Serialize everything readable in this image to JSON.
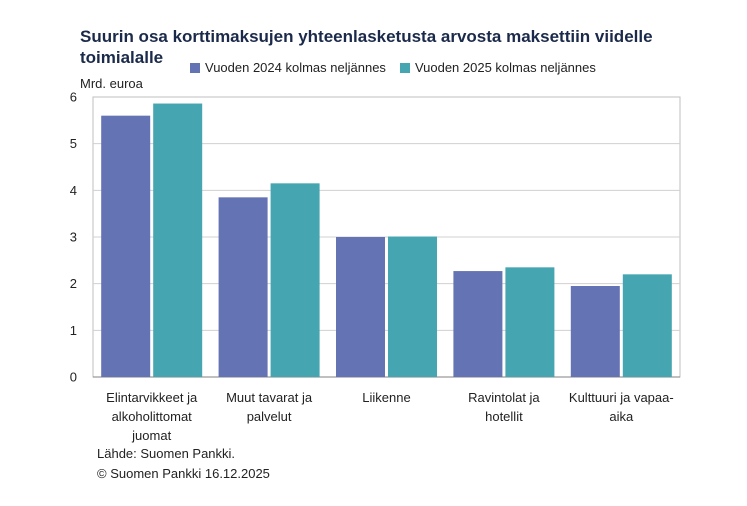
{
  "chart_data": {
    "type": "bar",
    "title": "Suurin osa korttimaksujen yhteenlasketusta arvosta maksettiin viidelle toimialalle",
    "ylabel": "Mrd. euroa",
    "ylim": [
      0,
      6
    ],
    "yticks": [
      "0",
      "1",
      "2",
      "3",
      "4",
      "5",
      "6"
    ],
    "grid": true,
    "legend_position": "top",
    "categories": [
      [
        "Elintarvikkeet ja",
        "alkoholittomat",
        "juomat"
      ],
      [
        "Muut tavarat ja",
        "palvelut"
      ],
      [
        "Liikenne"
      ],
      [
        "Ravintolat ja",
        "hotellit"
      ],
      [
        "Kulttuuri ja vapaa-",
        "aika"
      ]
    ],
    "series": [
      {
        "name": "Vuoden 2024 kolmas neljännes",
        "color": "#6473b4",
        "values": [
          5.6,
          3.85,
          3.0,
          2.27,
          1.95
        ]
      },
      {
        "name": "Vuoden 2025 kolmas neljännes",
        "color": "#45a5b1",
        "values": [
          5.86,
          4.15,
          3.01,
          2.35,
          2.2
        ]
      }
    ]
  },
  "source": {
    "line1": "Lähde: Suomen Pankki.",
    "line2": "© Suomen Pankki 16.12.2025"
  }
}
